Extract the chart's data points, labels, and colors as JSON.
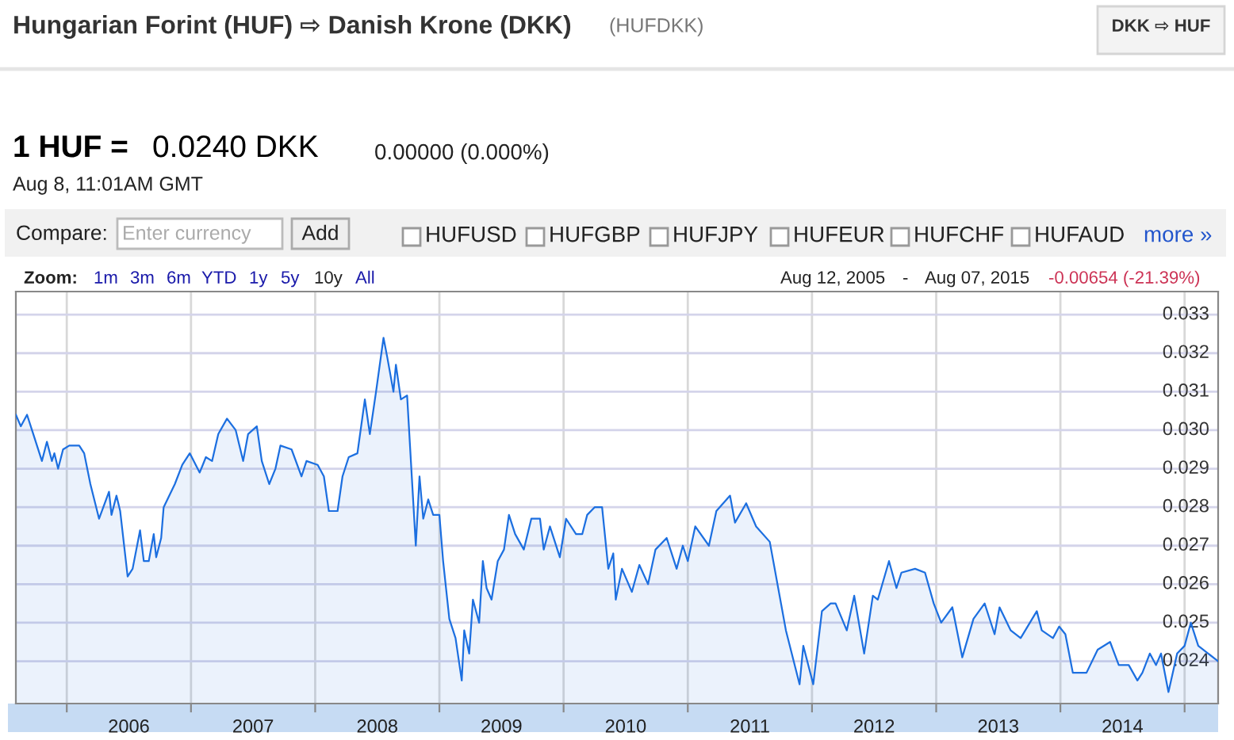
{
  "chart_data": {
    "type": "area",
    "title": "Hungarian Forint (HUF) ⇨ Danish Krone (DKK)",
    "subtitle": "(HUFDKK)",
    "annotations": [
      "DKK ⇨ HUF",
      "1 HUF =",
      "0.0240 DKK",
      "0.00000 (0.000%)",
      "Aug 8, 11:01AM GMT",
      "Compare:",
      "Enter currency",
      "Add",
      "HUFUSD",
      "HUFGBP",
      "HUFJPY",
      "HUFEUR",
      "HUFCHF",
      "HUFAUD",
      "more »",
      "Zoom:",
      "1m",
      "3m",
      "6m",
      "YTD",
      "1y",
      "5y",
      "10y",
      "All",
      "Aug 12, 2005",
      "-",
      "Aug 07, 2015",
      "-0.00654 (-21.39%)"
    ],
    "x": [
      2005.59,
      2005.63,
      2005.68,
      2005.72,
      2005.8,
      2005.84,
      2005.88,
      2005.9,
      2005.93,
      2005.97,
      2006.02,
      2006.1,
      2006.14,
      2006.19,
      2006.26,
      2006.34,
      2006.36,
      2006.4,
      2006.43,
      2006.49,
      2006.53,
      2006.59,
      2006.62,
      2006.66,
      2006.7,
      2006.72,
      2006.76,
      2006.78,
      2006.87,
      2006.93,
      2006.99,
      2007.07,
      2007.12,
      2007.17,
      2007.22,
      2007.29,
      2007.36,
      2007.42,
      2007.46,
      2007.53,
      2007.57,
      2007.63,
      2007.68,
      2007.72,
      2007.81,
      2007.89,
      2007.93,
      2008.02,
      2008.07,
      2008.11,
      2008.18,
      2008.22,
      2008.27,
      2008.34,
      2008.4,
      2008.44,
      2008.49,
      2008.55,
      2008.58,
      2008.63,
      2008.65,
      2008.69,
      2008.74,
      2008.81,
      2008.84,
      2008.87,
      2008.91,
      2008.95,
      2009.0,
      2009.03,
      2009.08,
      2009.13,
      2009.18,
      2009.2,
      2009.24,
      2009.27,
      2009.32,
      2009.35,
      2009.38,
      2009.42,
      2009.47,
      2009.52,
      2009.56,
      2009.61,
      2009.68,
      2009.74,
      2009.81,
      2009.84,
      2009.89,
      2009.97,
      2010.02,
      2010.1,
      2010.15,
      2010.19,
      2010.25,
      2010.31,
      2010.36,
      2010.4,
      2010.42,
      2010.47,
      2010.55,
      2010.61,
      2010.68,
      2010.74,
      2010.83,
      2010.91,
      2010.96,
      2011.0,
      2011.06,
      2011.17,
      2011.23,
      2011.34,
      2011.38,
      2011.47,
      2011.55,
      2011.66,
      2011.79,
      2011.9,
      2011.93,
      2012.01,
      2012.08,
      2012.15,
      2012.19,
      2012.28,
      2012.34,
      2012.42,
      2012.49,
      2012.53,
      2012.62,
      2012.68,
      2012.72,
      2012.83,
      2012.91,
      2012.98,
      2013.04,
      2013.13,
      2013.21,
      2013.3,
      2013.39,
      2013.47,
      2013.51,
      2013.6,
      2013.68,
      2013.81,
      2013.85,
      2013.94,
      2013.99,
      2014.04,
      2014.1,
      2014.21,
      2014.3,
      2014.4,
      2014.47,
      2014.55,
      2014.62,
      2014.66,
      2014.72,
      2014.77,
      2014.81,
      2014.87,
      2014.94,
      2015.0,
      2015.05,
      2015.11,
      2015.27
    ],
    "series": [
      {
        "color": "#1c6fe0",
        "values": [
          0.0304,
          0.0301,
          0.0304,
          0.03,
          0.0292,
          0.0297,
          0.0292,
          0.0294,
          0.029,
          0.0295,
          0.0296,
          0.0296,
          0.0294,
          0.0286,
          0.0277,
          0.0284,
          0.0278,
          0.0283,
          0.0279,
          0.0262,
          0.0264,
          0.0274,
          0.0266,
          0.0266,
          0.0273,
          0.0267,
          0.0272,
          0.028,
          0.0286,
          0.0291,
          0.0294,
          0.0289,
          0.0293,
          0.0292,
          0.0299,
          0.0303,
          0.03,
          0.0292,
          0.0299,
          0.0301,
          0.0292,
          0.0286,
          0.029,
          0.0296,
          0.0295,
          0.0288,
          0.0292,
          0.0291,
          0.0288,
          0.0279,
          0.0279,
          0.0288,
          0.0293,
          0.0294,
          0.0308,
          0.0299,
          0.031,
          0.0324,
          0.0319,
          0.031,
          0.0317,
          0.0308,
          0.0309,
          0.027,
          0.0288,
          0.0277,
          0.0282,
          0.0278,
          0.0278,
          0.0266,
          0.0251,
          0.0246,
          0.0235,
          0.0248,
          0.0242,
          0.0256,
          0.025,
          0.0266,
          0.0259,
          0.0256,
          0.0266,
          0.0269,
          0.0278,
          0.0273,
          0.0269,
          0.0277,
          0.0277,
          0.0269,
          0.0275,
          0.0267,
          0.0277,
          0.0273,
          0.0273,
          0.0278,
          0.028,
          0.028,
          0.0264,
          0.0268,
          0.0256,
          0.0264,
          0.0258,
          0.0265,
          0.026,
          0.0269,
          0.0272,
          0.0264,
          0.027,
          0.0266,
          0.0275,
          0.027,
          0.0279,
          0.0283,
          0.0276,
          0.0281,
          0.0275,
          0.0271,
          0.0248,
          0.0234,
          0.0244,
          0.0234,
          0.0253,
          0.0255,
          0.0255,
          0.0248,
          0.0257,
          0.0242,
          0.0257,
          0.0256,
          0.0266,
          0.0259,
          0.0263,
          0.0264,
          0.0263,
          0.0255,
          0.025,
          0.0254,
          0.0241,
          0.0251,
          0.0255,
          0.0247,
          0.0254,
          0.0248,
          0.0246,
          0.0253,
          0.0248,
          0.0246,
          0.0249,
          0.0247,
          0.0237,
          0.0237,
          0.0243,
          0.0245,
          0.0239,
          0.0239,
          0.0235,
          0.0237,
          0.0242,
          0.0239,
          0.0242,
          0.0232,
          0.0242,
          0.0244,
          0.025,
          0.0244,
          0.024
        ]
      }
    ],
    "xlim": [
      2005.59,
      2015.27
    ],
    "xticks": [
      {
        "value": 2006,
        "label": null
      },
      {
        "value": 2006.5,
        "label": "2006"
      },
      {
        "value": 2007,
        "label": null
      },
      {
        "value": 2007.5,
        "label": "2007"
      },
      {
        "value": 2008,
        "label": null
      },
      {
        "value": 2008.5,
        "label": "2008"
      },
      {
        "value": 2009,
        "label": null
      },
      {
        "value": 2009.5,
        "label": "2009"
      },
      {
        "value": 2010,
        "label": null
      },
      {
        "value": 2010.5,
        "label": "2010"
      },
      {
        "value": 2011,
        "label": null
      },
      {
        "value": 2011.5,
        "label": "2011"
      },
      {
        "value": 2012,
        "label": null
      },
      {
        "value": 2012.5,
        "label": "2012"
      },
      {
        "value": 2013,
        "label": null
      },
      {
        "value": 2013.5,
        "label": "2013"
      },
      {
        "value": 2014,
        "label": null
      },
      {
        "value": 2014.5,
        "label": "2014"
      },
      {
        "value": 2015,
        "label": null
      }
    ],
    "ylim": [
      0.0229,
      0.0336
    ],
    "yticks": [
      {
        "value": 0.024,
        "label": "0.024"
      },
      {
        "value": 0.025,
        "label": "0.025"
      },
      {
        "value": 0.026,
        "label": "0.026"
      },
      {
        "value": 0.027,
        "label": "0.027"
      },
      {
        "value": 0.028,
        "label": "0.028"
      },
      {
        "value": 0.029,
        "label": "0.029"
      },
      {
        "value": 0.03,
        "label": "0.030"
      },
      {
        "value": 0.031,
        "label": "0.031"
      },
      {
        "value": 0.032,
        "label": "0.032"
      },
      {
        "value": 0.033,
        "label": "0.033"
      }
    ],
    "grid": true,
    "legend": false
  }
}
